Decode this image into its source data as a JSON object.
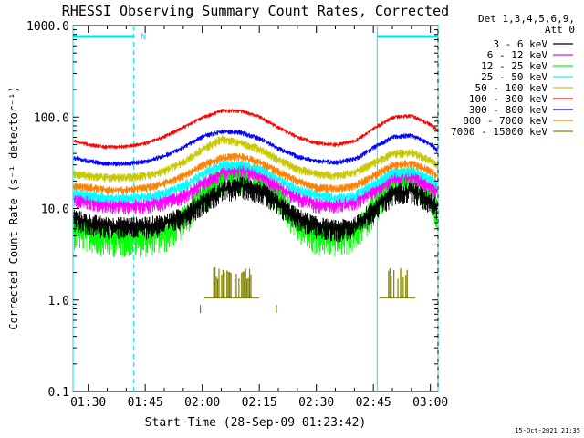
{
  "chart_data": {
    "type": "line",
    "title": "RHESSI Observing Summary Count Rates, Corrected",
    "xlabel": "Start Time (28-Sep-09 01:23:42)",
    "ylabel": "Corrected Count Rate (s⁻¹ detector⁻¹)",
    "yscale": "log",
    "ylim": [
      0.1,
      1000
    ],
    "xlim_minutes": [
      86,
      182
    ],
    "y_ticks": [
      {
        "value": 1000,
        "label": "1000.0"
      },
      {
        "value": 100,
        "label": "100.0"
      },
      {
        "value": 10,
        "label": "10.0"
      },
      {
        "value": 1,
        "label": "1.0"
      },
      {
        "value": 0.1,
        "label": "0.1"
      }
    ],
    "x_ticks": [
      {
        "minute": 90,
        "label": "01:30"
      },
      {
        "minute": 105,
        "label": "01:45"
      },
      {
        "minute": 120,
        "label": "02:00"
      },
      {
        "minute": 135,
        "label": "02:15"
      },
      {
        "minute": 150,
        "label": "02:30"
      },
      {
        "minute": 165,
        "label": "02:45"
      },
      {
        "minute": 180,
        "label": "03:00"
      }
    ],
    "legend": {
      "header": [
        "Det 1,3,4,5,6,9,",
        "Att 0"
      ],
      "placement": "top-right outside"
    },
    "time_minutes": [
      86,
      90,
      95,
      100,
      105,
      110,
      115,
      120,
      125,
      130,
      135,
      140,
      145,
      150,
      155,
      160,
      165,
      170,
      175,
      180,
      182
    ],
    "series": [
      {
        "name": "3 - 6 keV",
        "color": "#000000",
        "values": [
          8,
          7,
          6.5,
          6.5,
          6.5,
          7,
          8.5,
          12,
          16,
          18,
          16,
          11,
          8,
          6.5,
          6,
          6.5,
          10,
          15,
          16,
          12,
          10
        ]
      },
      {
        "name": "6 - 12 keV",
        "color": "#ff00ff",
        "values": [
          13,
          12,
          11,
          11,
          11,
          12,
          14,
          19,
          25,
          27,
          24,
          17,
          13,
          11,
          11,
          12,
          16,
          22,
          23,
          18,
          15
        ]
      },
      {
        "name": "12 - 25 keV",
        "color": "#00ff00",
        "values": [
          6,
          5.5,
          5,
          5,
          5,
          5.5,
          8,
          15,
          22,
          25,
          22,
          14,
          7,
          5,
          5,
          5.5,
          11,
          20,
          22,
          14,
          9
        ]
      },
      {
        "name": "25 - 50 keV",
        "color": "#00ffff",
        "values": [
          15,
          14,
          13,
          13,
          13.5,
          15,
          18,
          24,
          30,
          31,
          27,
          21,
          16,
          14,
          13,
          14,
          19,
          25,
          26,
          21,
          18
        ]
      },
      {
        "name": "50 - 100 keV",
        "color": "#c8c800",
        "values": [
          24,
          23,
          22,
          22,
          23,
          26,
          33,
          45,
          58,
          52,
          45,
          34,
          27,
          24,
          23,
          25,
          32,
          40,
          41,
          33,
          28
        ]
      },
      {
        "name": "100 - 300 keV",
        "color": "#ff0000",
        "values": [
          55,
          50,
          47,
          48,
          52,
          62,
          78,
          100,
          118,
          117,
          100,
          76,
          60,
          52,
          50,
          55,
          76,
          100,
          103,
          82,
          70
        ]
      },
      {
        "name": "300 - 800 keV",
        "color": "#0000ff",
        "values": [
          36,
          33,
          31,
          31,
          33,
          38,
          47,
          62,
          70,
          68,
          58,
          45,
          37,
          33,
          32,
          35,
          47,
          61,
          63,
          50,
          42
        ]
      },
      {
        "name": "800 - 7000 keV",
        "color": "#ff8000",
        "values": [
          18,
          17,
          16,
          16,
          17,
          19,
          23,
          30,
          36,
          37,
          32,
          25,
          20,
          17,
          16.5,
          18,
          23,
          30,
          31,
          26,
          22
        ]
      },
      {
        "name": "7000 - 15000 keV",
        "color": "#808000",
        "values": [],
        "note": "sparse bursts near 1-2 counts"
      }
    ],
    "markers": {
      "saa_bars": [
        [
          86,
          102
        ],
        [
          166,
          182
        ]
      ],
      "saa_label": "N",
      "dashed_verticals_minutes": [
        102,
        182
      ],
      "solid_verticals_minutes": [
        86,
        166
      ]
    }
  },
  "footer": {
    "timestamp": "15-Oct-2021 21:35"
  }
}
